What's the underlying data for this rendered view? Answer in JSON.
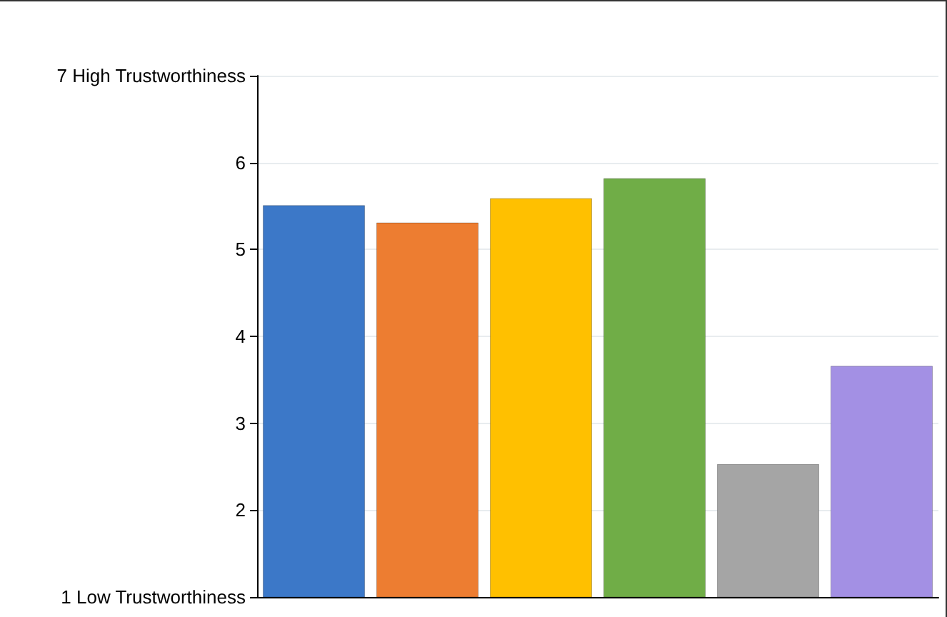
{
  "chart_data": {
    "type": "bar",
    "categories": [
      null,
      null,
      null,
      null,
      null,
      null
    ],
    "values": [
      5.51,
      5.31,
      5.59,
      5.82,
      2.53,
      3.66
    ],
    "colors": [
      "#3c78c8",
      "#ed7d31",
      "#ffc000",
      "#70ad47",
      "#a5a5a5",
      "#a390e4"
    ],
    "ylim": [
      1,
      7
    ],
    "yticks": [
      {
        "value": 1,
        "label": "1 Low Trustworthiness"
      },
      2,
      3,
      4,
      5,
      6,
      {
        "value": 7,
        "label": "7 High Trustworthiness"
      }
    ],
    "grid": "y"
  }
}
